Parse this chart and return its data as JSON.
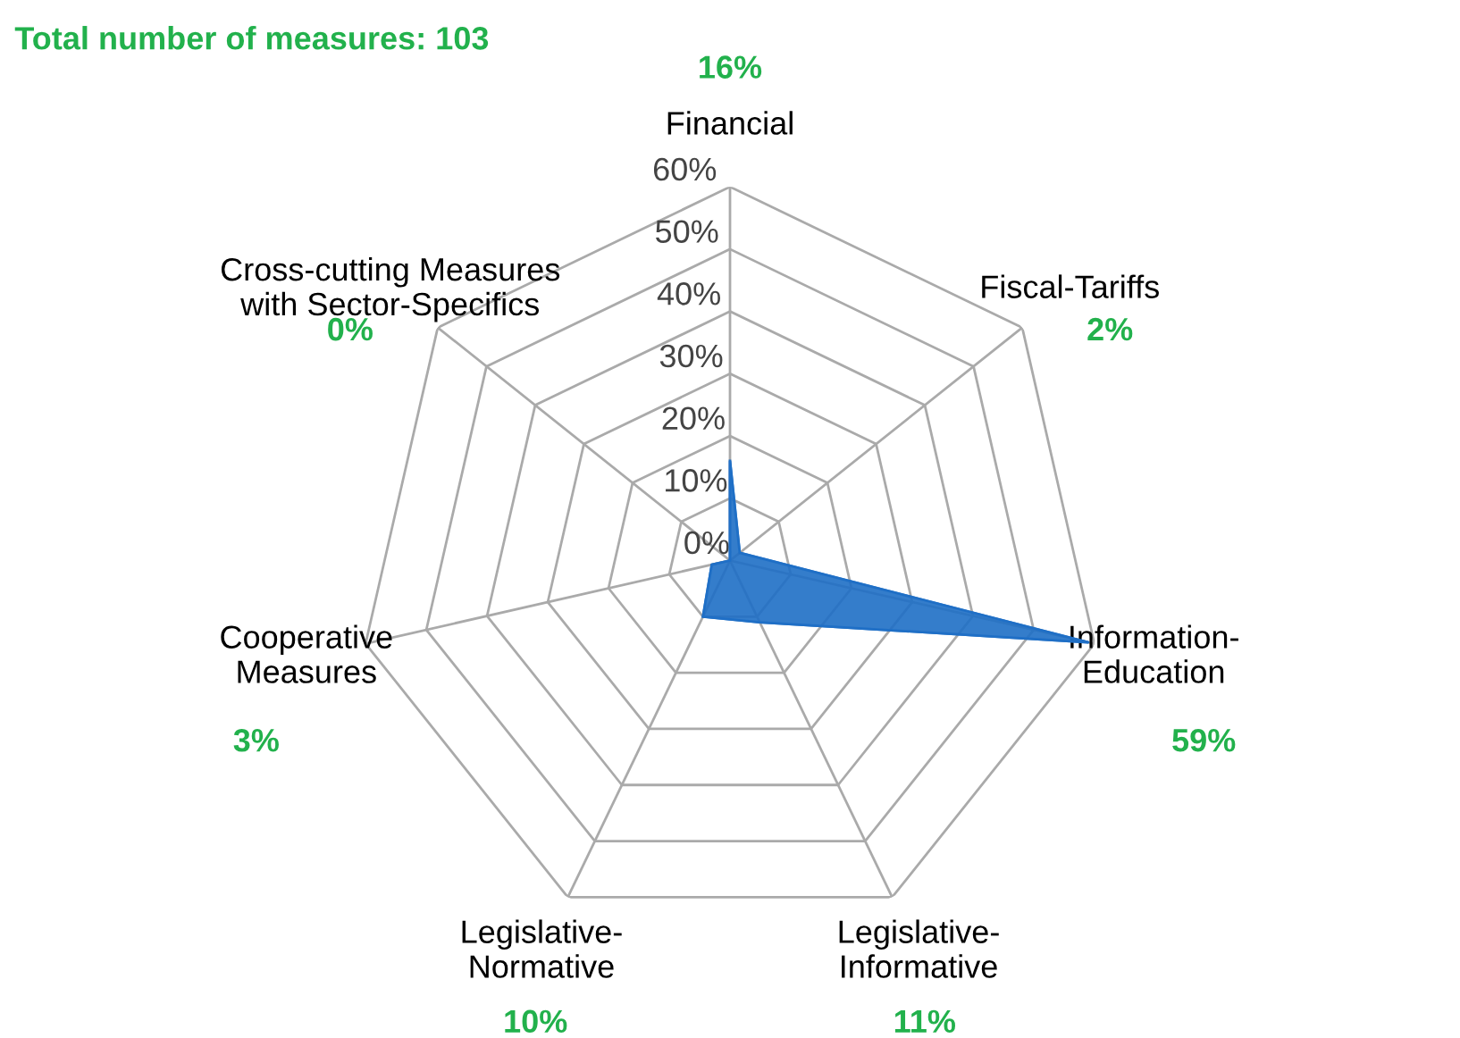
{
  "chart_data": {
    "type": "radar",
    "title": "Total number of measures: 103",
    "categories": [
      "Financial",
      "Fiscal-Tariffs",
      "Information-\nEducation",
      "Legislative-\nInformative",
      "Legislative-\nNormative",
      "Cooperative\nMeasures",
      "Cross-cutting Measures\nwith Sector-Specifics"
    ],
    "series": [
      {
        "color": "#1f6fc6",
        "values": [
          16,
          2,
          59,
          11,
          10,
          3,
          0
        ]
      }
    ],
    "annotations": [
      "16%",
      "2%",
      "59%",
      "11%",
      "10%",
      "3%",
      "0%"
    ],
    "ylim": [
      0,
      60
    ],
    "yticks": [
      {
        "value": 0,
        "label": "0%"
      },
      {
        "value": 10,
        "label": "10%"
      },
      {
        "value": 20,
        "label": "20%"
      },
      {
        "value": 30,
        "label": "30%"
      },
      {
        "value": 40,
        "label": "40%"
      },
      {
        "value": 50,
        "label": "50%"
      },
      {
        "value": 60,
        "label": "60%"
      }
    ],
    "grid": true,
    "legend": false
  }
}
